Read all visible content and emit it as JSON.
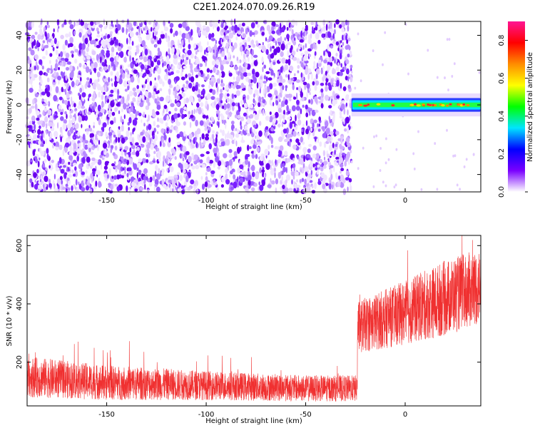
{
  "title": "C2E1.2024.070.09.26.R19",
  "chart_data": [
    {
      "type": "heatmap",
      "xlabel": "Height of straight line (km)",
      "ylabel": "Frequency (Hz)",
      "xlim": [
        -190,
        38
      ],
      "ylim": [
        -50,
        48
      ],
      "xticks": [
        -150,
        -100,
        -50,
        0
      ],
      "yticks": [
        -40,
        -20,
        0,
        20,
        40
      ],
      "xtick_labels": [
        "-150",
        "-100",
        "-50",
        "0"
      ],
      "ytick_labels": [
        "-40",
        "-20",
        "0",
        "20",
        "40"
      ],
      "noise_region_x": [
        -190,
        -27
      ],
      "signal_region_x": [
        -27,
        38
      ],
      "signal_center_hz": 0,
      "signal_halfwidth_hz": 3,
      "colorbar": {
        "label": "Normalized spectral amplitude",
        "range": [
          0,
          0.9
        ],
        "ticks": [
          0.0,
          0.2,
          0.4,
          0.6,
          0.8
        ],
        "tick_labels": [
          "0.0",
          "0.2",
          "0.4",
          "0.6",
          "0.8"
        ],
        "colormap": [
          "#ffffff",
          "#7a00ff",
          "#0000ff",
          "#00e5ff",
          "#00ff00",
          "#ffff00",
          "#ff8c00",
          "#ff0000",
          "#ff1493"
        ]
      }
    },
    {
      "type": "line",
      "xlabel": "Height of straight line (km)",
      "ylabel": "SNR (10 * v/v)",
      "xlim": [
        -190,
        38
      ],
      "ylim": [
        50,
        635
      ],
      "xticks": [
        -150,
        -100,
        -50,
        0
      ],
      "yticks": [
        200,
        400,
        600
      ],
      "xtick_labels": [
        "-150",
        "-100",
        "-50",
        "0"
      ],
      "ytick_labels": [
        "200",
        "400",
        "600"
      ],
      "color": "#f03030",
      "segments": [
        {
          "x": [
            -190,
            -150,
            -100,
            -50,
            -24
          ],
          "mean": [
            150,
            130,
            120,
            110,
            110
          ],
          "spread": [
            70,
            60,
            50,
            45,
            45
          ]
        },
        {
          "x": [
            -24,
            0,
            20,
            38
          ],
          "mean": [
            320,
            370,
            420,
            460
          ],
          "spread": [
            90,
            110,
            130,
            130
          ]
        }
      ]
    }
  ]
}
